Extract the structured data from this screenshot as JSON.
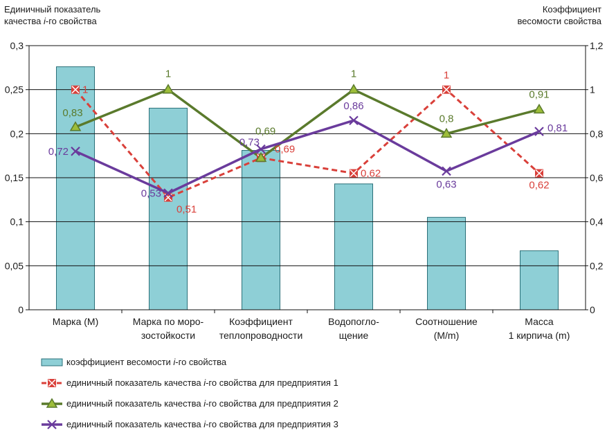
{
  "left_axis_title": {
    "line1": "Единичный показатель",
    "line2_pre": "качества ",
    "line2_ital": "i",
    "line2_post": "-го свойства"
  },
  "right_axis_title": {
    "line1": "Коэффициент",
    "line2": "весомости свойства"
  },
  "legend": [
    {
      "pre": "коэффициент весомости ",
      "ital": "i",
      "post": "-го свойства"
    },
    {
      "pre": "единичный показатель качества ",
      "ital": "i",
      "post": "-го свойства для предприятия 1"
    },
    {
      "pre": "единичный показатель качества ",
      "ital": "i",
      "post": "-го свойства для предприятия 2"
    },
    {
      "pre": "единичный показатель качества ",
      "ital": "i",
      "post": "-го свойства для предприятия 3"
    }
  ],
  "chart_data": {
    "type": "bar+line",
    "categories": [
      [
        "Марка (М)"
      ],
      [
        "Марка по моро-",
        "зостойкости"
      ],
      [
        "Коэффициент",
        "теплопроводности"
      ],
      [
        "Водопогло-",
        "щение"
      ],
      [
        "Соотношение",
        "(М/m)"
      ],
      [
        "Масса",
        "1 кирпича (m)"
      ]
    ],
    "left_axis": {
      "min": 0,
      "max": 0.3,
      "ticks": [
        "0",
        "0,05",
        "0,1",
        "0,15",
        "0,2",
        "0,25",
        "0,3"
      ]
    },
    "right_axis": {
      "min": 0,
      "max": 1.2,
      "ticks": [
        "0",
        "0,2",
        "0,4",
        "0,6",
        "0,8",
        "1",
        "1,2"
      ]
    },
    "grid": true,
    "legend_position": "bottom",
    "bars": {
      "axis": "left",
      "color": "#8ecfd6",
      "edge": "#2a6f78",
      "values": [
        0.276,
        0.229,
        0.181,
        0.143,
        0.105,
        0.067
      ]
    },
    "series": [
      {
        "axis": "right",
        "color": "#d9403a",
        "style": "dashed",
        "marker": "x-square",
        "values": [
          1,
          0.51,
          0.69,
          0.62,
          1,
          0.62
        ],
        "labels": [
          "1",
          "0,51",
          "0,69",
          "0,62",
          "1",
          "0,62"
        ]
      },
      {
        "axis": "right",
        "color": "#5a7a2c",
        "style": "solid",
        "marker": "triangle",
        "values": [
          0.83,
          1,
          0.69,
          1,
          0.8,
          0.91
        ],
        "labels": [
          "0,83",
          "1",
          "0,69",
          "1",
          "0,8",
          "0,91"
        ]
      },
      {
        "axis": "right",
        "color": "#6a3b9c",
        "style": "solid",
        "marker": "x",
        "values": [
          0.72,
          0.53,
          0.73,
          0.86,
          0.63,
          0.81
        ],
        "labels": [
          "0,72",
          "0,53",
          "0,73",
          "0,86",
          "0,63",
          "0,81"
        ]
      }
    ]
  }
}
